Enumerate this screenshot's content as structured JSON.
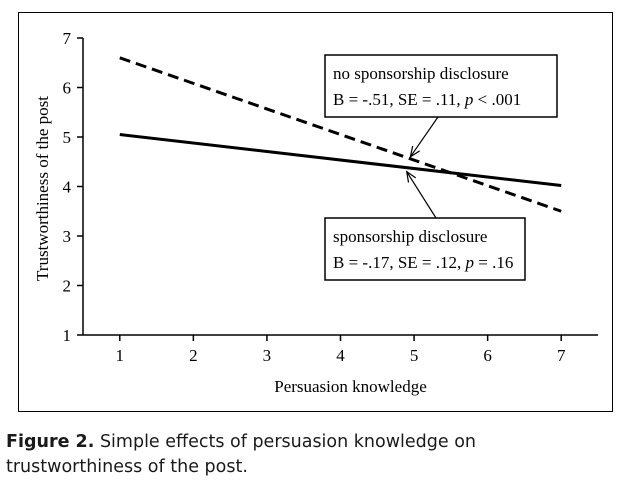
{
  "chart_data": {
    "type": "line",
    "xlabel": "Persuasion knowledge",
    "ylabel": "Trustworthiness of the post",
    "xlim": [
      0.5,
      7.5
    ],
    "ylim": [
      1,
      7
    ],
    "x_ticks": [
      1,
      2,
      3,
      4,
      5,
      6,
      7
    ],
    "y_ticks": [
      1,
      2,
      3,
      4,
      5,
      6,
      7
    ],
    "series": [
      {
        "name": "no sponsorship disclosure",
        "style": "dashed",
        "x": [
          1,
          7
        ],
        "y": [
          6.6,
          3.5
        ]
      },
      {
        "name": "sponsorship disclosure",
        "style": "solid",
        "x": [
          1,
          7
        ],
        "y": [
          5.05,
          4.02
        ]
      }
    ],
    "annotations": [
      {
        "series": "no sponsorship disclosure",
        "title": "no sponsorship disclosure",
        "stats_prefix": "B = -.51, SE = .11, ",
        "p_symbol": "p",
        "p_rest": " < .001",
        "points_to": [
          4.95,
          4.6
        ]
      },
      {
        "series": "sponsorship disclosure",
        "title": "sponsorship disclosure",
        "stats_prefix": "B = -.17, SE = .12, ",
        "p_symbol": "p",
        "p_rest": " = .16",
        "points_to": [
          4.9,
          4.3
        ]
      }
    ]
  },
  "caption": {
    "label": "Figure 2.",
    "text": "Simple effects of persuasion knowledge on trustworthiness of the post."
  }
}
